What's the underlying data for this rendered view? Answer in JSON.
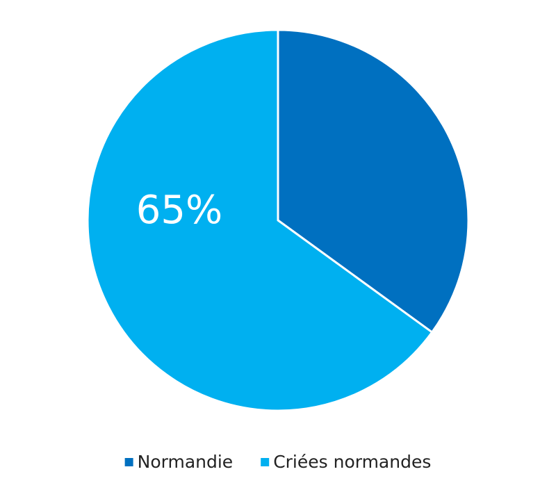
{
  "chart_data": {
    "type": "pie",
    "categories": [
      "Normandie",
      "Criées normandes"
    ],
    "values": [
      35,
      65
    ],
    "value_labels": [
      null,
      "65%"
    ],
    "colors": [
      "#0070c0",
      "#00b0f0"
    ],
    "legend": "bottom"
  }
}
